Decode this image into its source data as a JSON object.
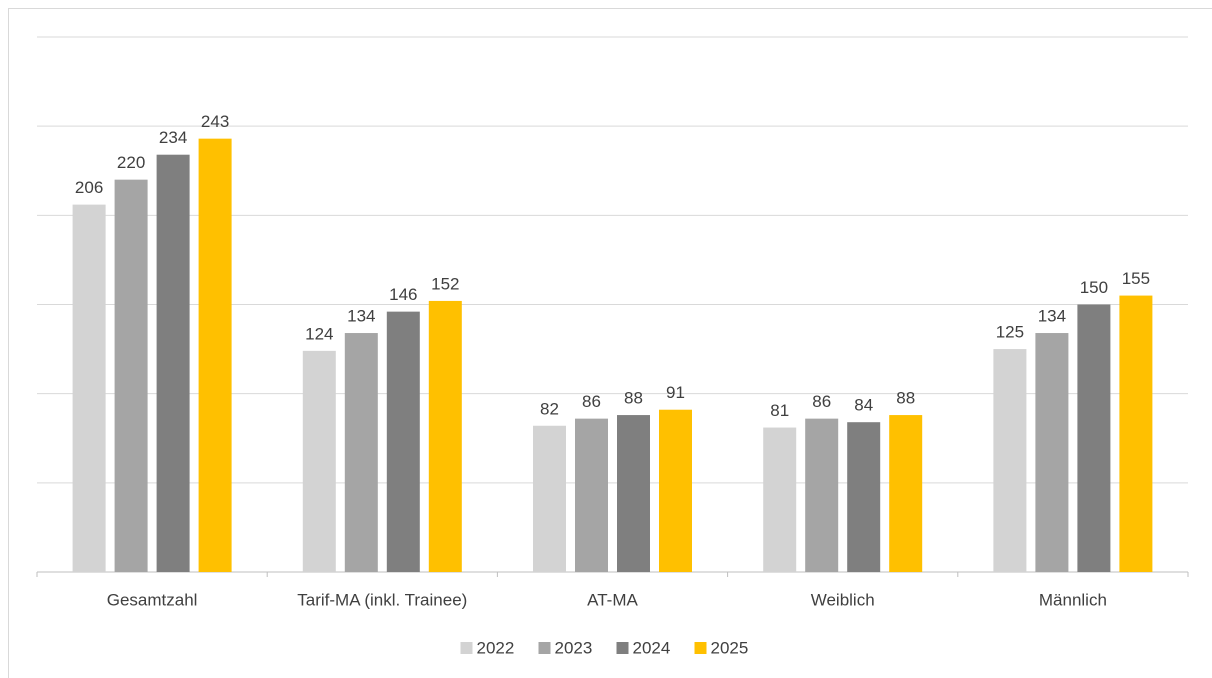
{
  "chart_data": {
    "type": "bar",
    "categories": [
      "Gesamtzahl",
      "Tarif-MA (inkl. Trainee)",
      "AT-MA",
      "Weiblich",
      "Männlich"
    ],
    "series": [
      {
        "name": "2022",
        "color": "#d3d3d3",
        "values": [
          206,
          124,
          82,
          81,
          125
        ]
      },
      {
        "name": "2023",
        "color": "#a5a5a5",
        "values": [
          220,
          134,
          86,
          86,
          134
        ]
      },
      {
        "name": "2024",
        "color": "#7f7f7f",
        "values": [
          234,
          146,
          88,
          84,
          150
        ]
      },
      {
        "name": "2025",
        "color": "#ffc000",
        "values": [
          243,
          152,
          91,
          88,
          155
        ]
      }
    ],
    "ylim": [
      0,
      300
    ],
    "yticks": [
      0,
      50,
      100,
      150,
      200,
      250,
      300
    ],
    "grid": true,
    "legend": "bottom"
  }
}
